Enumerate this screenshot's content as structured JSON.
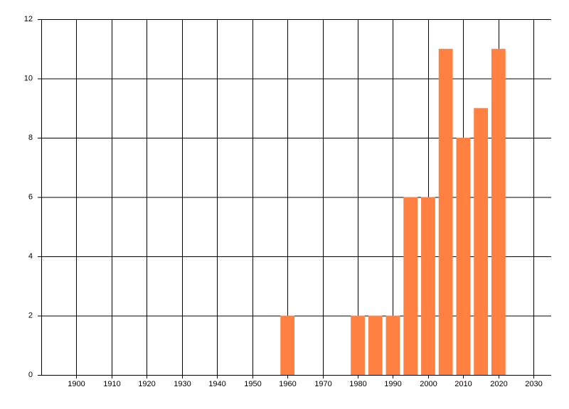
{
  "chart_data": {
    "type": "bar",
    "x": [
      1960,
      1980,
      1985,
      1990,
      1995,
      2000,
      2005,
      2010,
      2015,
      2020
    ],
    "values": [
      2,
      2,
      2,
      2,
      6,
      6,
      11,
      8,
      9,
      11
    ],
    "color": "#ff8040",
    "xlim": [
      1890,
      2035
    ],
    "xticks": [
      1900,
      1910,
      1920,
      1930,
      1940,
      1950,
      1960,
      1970,
      1980,
      1990,
      2000,
      2010,
      2020,
      2030
    ],
    "ylim": [
      0,
      12
    ],
    "yticks": [
      0,
      2,
      4,
      6,
      8,
      10,
      12
    ],
    "grid": true
  }
}
